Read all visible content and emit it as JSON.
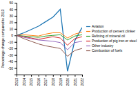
{
  "chart_data": {
    "type": "line",
    "ylabel": "Percentage change compared to 2013",
    "x": [
      2013,
      2014,
      2015,
      2016,
      2017,
      2018,
      2019,
      2020,
      2021,
      2022
    ],
    "series": [
      {
        "name": "Aviation",
        "values": [
          0,
          4,
          9,
          14,
          21,
          28,
          40,
          -55,
          -8,
          12
        ]
      },
      {
        "name": "Production of cement clinker",
        "values": [
          0,
          1,
          0,
          -1,
          2,
          4,
          4,
          -4,
          2,
          5
        ]
      },
      {
        "name": "Refining of mineral oil",
        "values": [
          0,
          -1,
          -2,
          -3,
          -1,
          0,
          1,
          -7,
          -1,
          1
        ]
      },
      {
        "name": "Production of pig iron or steel",
        "values": [
          0,
          -2,
          -4,
          -6,
          -4,
          -2,
          -4,
          -15,
          -5,
          -2
        ]
      },
      {
        "name": "Other industry",
        "values": [
          0,
          -3,
          -5,
          -7,
          -8,
          -9,
          -11,
          -22,
          -11,
          -9
        ]
      },
      {
        "name": "Combustion of fuels",
        "values": [
          0,
          -5,
          -9,
          -13,
          -16,
          -18,
          -20,
          -32,
          -23,
          -20
        ]
      }
    ],
    "xlim": [
      2013,
      2022
    ],
    "xticks": [
      2013,
      2014,
      2015,
      2016,
      2017,
      2018,
      2019,
      2020,
      2021,
      2022
    ],
    "ylim": [
      -60,
      50
    ],
    "yticks": [
      -50,
      -40,
      -30,
      -20,
      -10,
      0,
      10,
      20,
      30,
      40,
      50
    ]
  }
}
